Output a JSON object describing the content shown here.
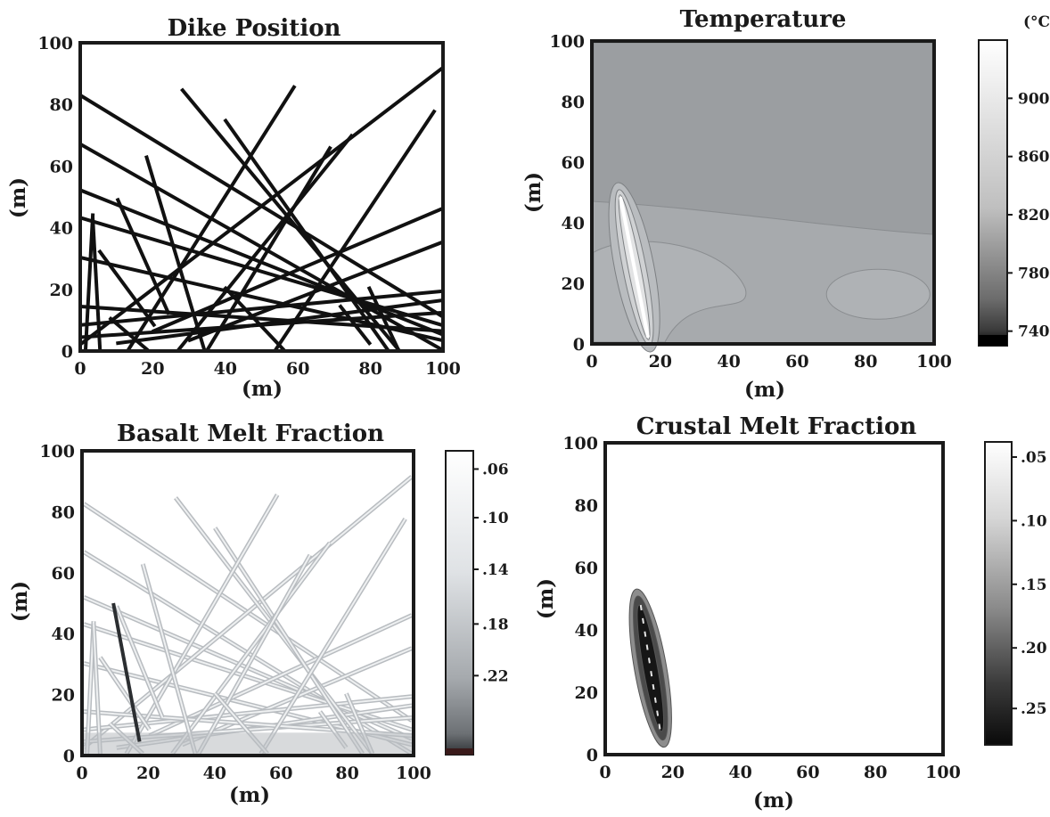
{
  "chart_data": [
    {
      "id": "dike",
      "type": "line",
      "title": "Dike Position",
      "xlabel": "(m)",
      "ylabel": "(m)",
      "xlim": [
        0,
        100
      ],
      "ylim": [
        0,
        100
      ],
      "xticks": [
        0,
        20,
        40,
        60,
        80,
        100
      ],
      "yticks": [
        0,
        20,
        40,
        60,
        80,
        100
      ],
      "color": "#111111",
      "series": [
        {
          "x": [
            0,
            100
          ],
          "y": [
            83,
            11
          ]
        },
        {
          "x": [
            0,
            100
          ],
          "y": [
            67,
            0
          ]
        },
        {
          "x": [
            0,
            100
          ],
          "y": [
            52,
            5
          ]
        },
        {
          "x": [
            0,
            100
          ],
          "y": [
            43,
            8
          ]
        },
        {
          "x": [
            0,
            100
          ],
          "y": [
            30,
            3
          ]
        },
        {
          "x": [
            0,
            100
          ],
          "y": [
            2,
            92
          ]
        },
        {
          "x": [
            20,
            100
          ],
          "y": [
            6,
            46
          ]
        },
        {
          "x": [
            30,
            100
          ],
          "y": [
            3,
            35
          ]
        },
        {
          "x": [
            10,
            100
          ],
          "y": [
            2,
            16
          ]
        },
        {
          "x": [
            0,
            100
          ],
          "y": [
            4,
            12
          ]
        },
        {
          "x": [
            0,
            100
          ],
          "y": [
            8,
            19
          ]
        },
        {
          "x": [
            0,
            100
          ],
          "y": [
            14,
            6
          ]
        },
        {
          "x": [
            28,
            88
          ],
          "y": [
            85,
            0
          ]
        },
        {
          "x": [
            40,
            85
          ],
          "y": [
            75,
            0
          ]
        },
        {
          "x": [
            13,
            59
          ],
          "y": [
            0,
            86
          ]
        },
        {
          "x": [
            27,
            75
          ],
          "y": [
            0,
            70
          ]
        },
        {
          "x": [
            35,
            69
          ],
          "y": [
            0,
            66
          ]
        },
        {
          "x": [
            54,
            98
          ],
          "y": [
            0,
            78
          ]
        },
        {
          "x": [
            5,
            20
          ],
          "y": [
            32,
            8
          ]
        },
        {
          "x": [
            10,
            24
          ],
          "y": [
            49,
            12
          ]
        },
        {
          "x": [
            18,
            34
          ],
          "y": [
            63,
            0
          ]
        },
        {
          "x": [
            40,
            56
          ],
          "y": [
            20,
            0
          ]
        },
        {
          "x": [
            72,
            80
          ],
          "y": [
            14,
            2
          ]
        },
        {
          "x": [
            80,
            88
          ],
          "y": [
            20,
            0
          ]
        },
        {
          "x": [
            1,
            3
          ],
          "y": [
            0,
            44
          ]
        },
        {
          "x": [
            3,
            5
          ],
          "y": [
            43,
            0
          ]
        },
        {
          "x": [
            8,
            18
          ],
          "y": [
            10,
            0
          ]
        }
      ]
    },
    {
      "id": "temperature",
      "type": "heatmap",
      "title": "Temperature",
      "xlabel": "(m)",
      "ylabel": "(m)",
      "xlim": [
        0,
        100
      ],
      "ylim": [
        0,
        100
      ],
      "xticks": [
        0,
        20,
        40,
        60,
        80,
        100
      ],
      "yticks": [
        0,
        20,
        40,
        60,
        80,
        100
      ],
      "colorbar_unit": "(°C)",
      "colorbar_ticks": [
        900,
        860,
        820,
        780,
        740
      ],
      "colorbar_range": [
        730,
        940
      ],
      "bands": [
        {
          "left": 100,
          "right": 100,
          "color": "#606366"
        },
        {
          "left": 89,
          "right": 88,
          "color": "#6f7275"
        },
        {
          "left": 76,
          "right": 70,
          "color": "#7f8285"
        },
        {
          "left": 63,
          "right": 52,
          "color": "#8e9194"
        },
        {
          "left": 47,
          "right": 36,
          "color": "#9b9ea1"
        }
      ],
      "base_color": "#a7aaad",
      "dike": {
        "x": [
          8,
          16
        ],
        "y": [
          48,
          2
        ]
      }
    },
    {
      "id": "basalt",
      "type": "heatmap",
      "title": "Basalt Melt Fraction",
      "xlabel": "(m)",
      "ylabel": "(m)",
      "xlim": [
        0,
        100
      ],
      "ylim": [
        0,
        100
      ],
      "xticks": [
        0,
        20,
        40,
        60,
        80,
        100
      ],
      "yticks": [
        0,
        20,
        40,
        60,
        80,
        100
      ],
      "colorbar_ticks": [
        ".06",
        ".10",
        ".14",
        ".18",
        ".22"
      ],
      "colorbar_tick_fractions": [
        0.06,
        0.22,
        0.39,
        0.57,
        0.74
      ],
      "line_color": "#b8bcc0",
      "dark_dike": {
        "x": [
          9,
          17
        ],
        "y": [
          50,
          4
        ]
      }
    },
    {
      "id": "crustal",
      "type": "heatmap",
      "title": "Crustal Melt Fraction",
      "xlabel": "(m)",
      "ylabel": "(m)",
      "xlim": [
        0,
        100
      ],
      "ylim": [
        0,
        100
      ],
      "xticks": [
        0,
        20,
        40,
        60,
        80,
        100
      ],
      "yticks": [
        0,
        20,
        40,
        60,
        80,
        100
      ],
      "colorbar_ticks": [
        ".05",
        ".10",
        ".15",
        ".20",
        ".25"
      ],
      "colorbar_tick_fractions": [
        0.05,
        0.26,
        0.47,
        0.68,
        0.88
      ],
      "blob": {
        "x": [
          9,
          17
        ],
        "y": [
          52,
          3
        ]
      }
    }
  ]
}
